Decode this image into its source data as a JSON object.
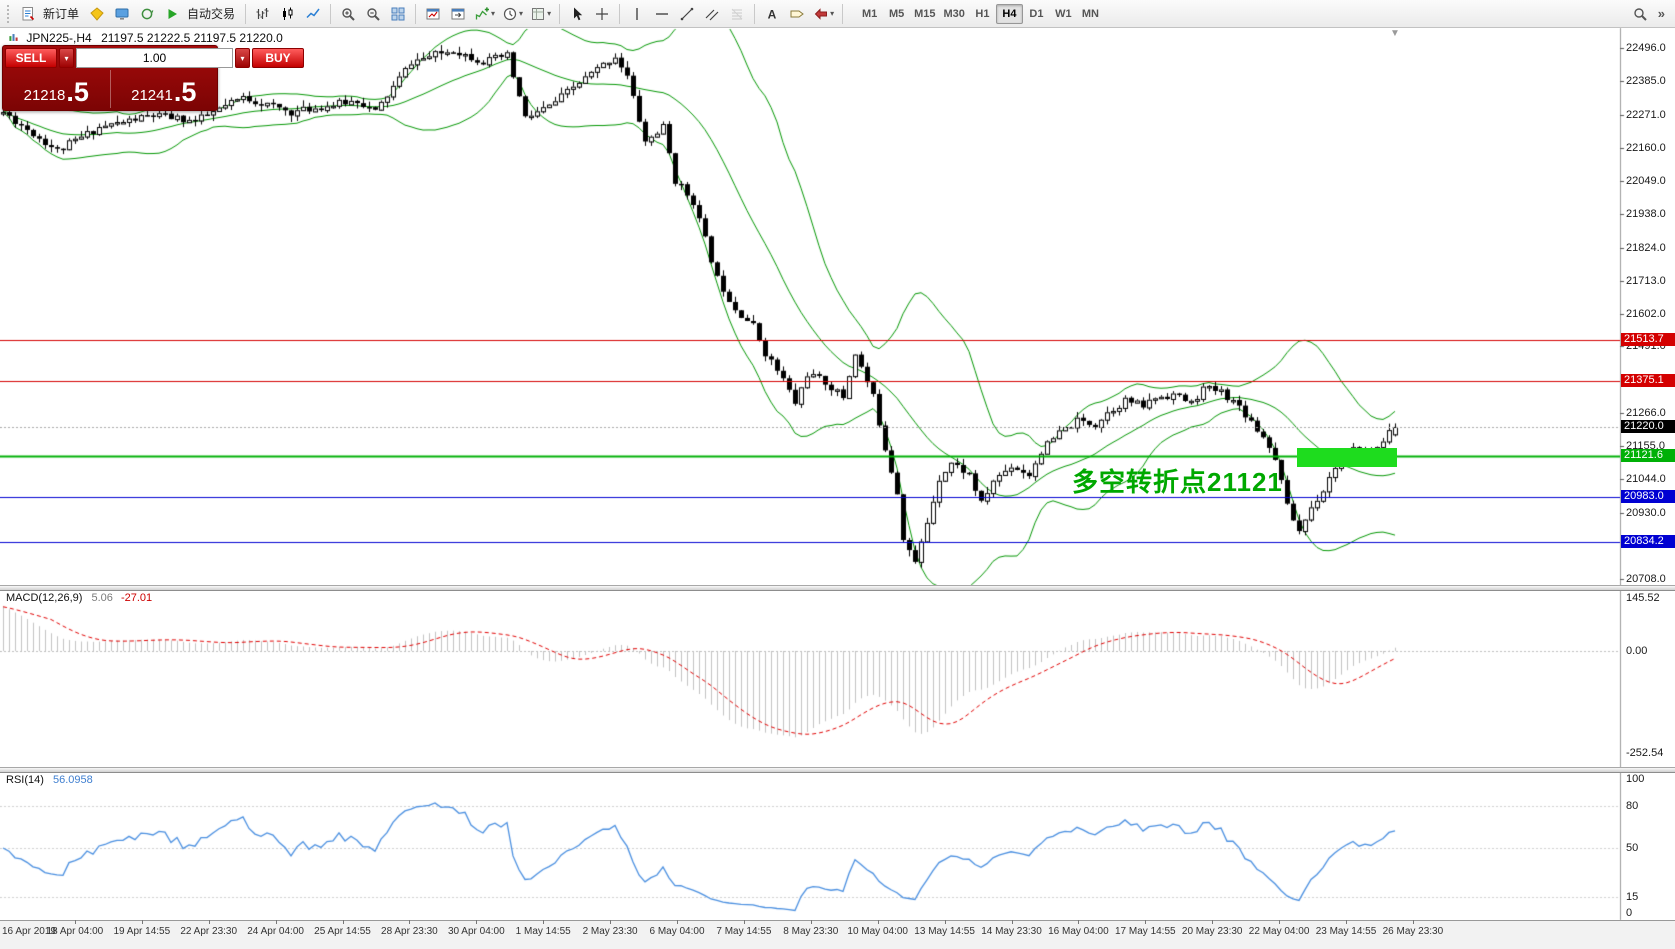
{
  "toolbar": {
    "new_order_label": "新订单",
    "autotrading_label": "自动交易",
    "timeframes": [
      "M1",
      "M5",
      "M15",
      "M30",
      "H1",
      "H4",
      "D1",
      "W1",
      "MN"
    ],
    "active_timeframe": "H4"
  },
  "icons": {
    "dropdown_glyph": "▾",
    "overflow_glyph": "»",
    "shift_marker_glyph": "▼",
    "letter_a_glyph": "A",
    "new_order": "document",
    "metaeditor": "yellow-diamond",
    "market_watch": "monitor",
    "refresh": "circular-arrow",
    "autotrading": "green-play",
    "bar_chart": "ohlc-bars",
    "candlestick_chart": "candles",
    "line_chart": "polyline",
    "zoom_in": "magnifier-plus",
    "zoom_out": "magnifier-minus",
    "tile_windows": "grid-2x2",
    "auto_scroll": "window-chart",
    "chart_shift": "window-shift",
    "indicators": "chart-plus",
    "periods": "clock",
    "templates": "grid-template",
    "cursor": "pointer-arrow",
    "crosshair": "cross",
    "vertical_line": "vertical-bar",
    "horizontal_line": "horizontal-bar",
    "trendline": "diagonal",
    "channel": "parallel-diagonals",
    "fibonacci": "fib-levels",
    "text": "letter-A",
    "text_label": "tag",
    "arrow_tools": "arrow-shape",
    "search": "magnifier"
  },
  "symbol_header": {
    "symbol": "JPN225-,H4",
    "ohlc": "21197.5 21222.5 21197.5 21220.0"
  },
  "one_click": {
    "sell_label": "SELL",
    "buy_label": "BUY",
    "lot": "1.00",
    "sell_price": "21218",
    "sell_price_big": ".5",
    "buy_price": "21241",
    "buy_price_big": ".5"
  },
  "price_axis": {
    "ticks": [
      "22496.0",
      "22385.0",
      "22271.0",
      "22160.0",
      "22049.0",
      "21938.0",
      "21824.0",
      "21713.0",
      "21602.0",
      "21491.0",
      "21266.0",
      "21155.0",
      "21044.0",
      "20930.0",
      "20708.0"
    ]
  },
  "hlines": [
    {
      "name": "resistance-line-1",
      "price": 21513.7,
      "label": "21513.7",
      "color": "#d40000",
      "style": "solid",
      "width": 1
    },
    {
      "name": "resistance-line-2",
      "price": 21375.1,
      "label": "21375.1",
      "color": "#d40000",
      "style": "solid",
      "width": 1
    },
    {
      "name": "bid-price-line",
      "price": 21220.0,
      "label": "21220.0",
      "color": "#000000",
      "line_color": "#a8a8a8",
      "style": "dot",
      "width": 1
    },
    {
      "name": "pivot-line",
      "price": 21121.6,
      "label": "21121.6",
      "color": "#00b007",
      "style": "solid",
      "width": 2
    },
    {
      "name": "support-line-1",
      "price": 20983.0,
      "label": "20983.0",
      "color": "#0000d2",
      "style": "solid",
      "width": 1
    },
    {
      "name": "support-line-2",
      "price": 20834.2,
      "label": "20834.2",
      "color": "#0000d2",
      "style": "solid",
      "width": 1
    }
  ],
  "annotation": {
    "text": "多空转折点21121",
    "color": "#00a800"
  },
  "highlight_box": {
    "color": "#1edc1e"
  },
  "panes": {
    "macd": {
      "label": "MACD(12,26,9)",
      "value_main": "5.06",
      "value_signal": "-27.01",
      "axis": [
        "145.52",
        "0.00",
        "-252.54"
      ]
    },
    "rsi": {
      "label": "RSI(14)",
      "value": "56.0958",
      "axis": [
        "100",
        "80",
        "50",
        "15",
        "0"
      ],
      "levels": [
        80,
        50,
        15
      ]
    }
  },
  "time_axis": {
    "labels": [
      "16 Apr 2019",
      "18 Apr 04:00",
      "19 Apr 14:55",
      "22 Apr 23:30",
      "24 Apr 04:00",
      "25 Apr 14:55",
      "28 Apr 23:30",
      "30 Apr 04:00",
      "1 May 14:55",
      "2 May 23:30",
      "6 May 04:00",
      "7 May 14:55",
      "8 May 23:30",
      "10 May 04:00",
      "13 May 14:55",
      "14 May 23:30",
      "16 May 04:00",
      "17 May 14:55",
      "20 May 23:30",
      "22 May 04:00",
      "23 May 14:55",
      "26 May 23:30"
    ]
  },
  "colors": {
    "bollinger": "#009600",
    "candle_up": "#ffffff",
    "candle_down": "#000000",
    "wick": "#000000",
    "macd_hist": "#c2c2c2",
    "macd_signal": "#e00000",
    "macd_zero": "#bdbdbd",
    "rsi_line": "#4a8fe0",
    "rsi_level": "#cfcfcf",
    "axis_line": "#9a9a9a"
  },
  "chart_data": {
    "type": "candlestick",
    "symbol": "JPN225-",
    "timeframe": "H4",
    "current_ohlc": {
      "open": 21197.5,
      "high": 21222.5,
      "low": 21197.5,
      "close": 21220.0
    },
    "visible_price_range": [
      20708,
      22563
    ],
    "candle_count": 233,
    "price_path": [
      [
        0,
        22280
      ],
      [
        9,
        22150
      ],
      [
        16,
        22230
      ],
      [
        25,
        22270
      ],
      [
        32,
        22250
      ],
      [
        40,
        22330
      ],
      [
        48,
        22280
      ],
      [
        59,
        22320
      ],
      [
        62,
        22280
      ],
      [
        68,
        22450
      ],
      [
        75,
        22490
      ],
      [
        80,
        22450
      ],
      [
        84,
        22470
      ],
      [
        87,
        22260
      ],
      [
        91,
        22300
      ],
      [
        96,
        22380
      ],
      [
        102,
        22470
      ],
      [
        104,
        22400
      ],
      [
        107,
        22180
      ],
      [
        110,
        22230
      ],
      [
        112,
        22050
      ],
      [
        115,
        21980
      ],
      [
        117,
        21850
      ],
      [
        119,
        21720
      ],
      [
        122,
        21620
      ],
      [
        125,
        21560
      ],
      [
        127,
        21470
      ],
      [
        130,
        21380
      ],
      [
        132,
        21300
      ],
      [
        134,
        21400
      ],
      [
        137,
        21370
      ],
      [
        140,
        21320
      ],
      [
        142,
        21470
      ],
      [
        145,
        21320
      ],
      [
        147,
        21150
      ],
      [
        149,
        21000
      ],
      [
        150,
        20850
      ],
      [
        152,
        20760
      ],
      [
        154,
        20900
      ],
      [
        156,
        21050
      ],
      [
        158,
        21100
      ],
      [
        161,
        21060
      ],
      [
        163,
        20960
      ],
      [
        165,
        21040
      ],
      [
        168,
        21090
      ],
      [
        171,
        21060
      ],
      [
        173,
        21140
      ],
      [
        176,
        21200
      ],
      [
        179,
        21240
      ],
      [
        182,
        21230
      ],
      [
        184,
        21270
      ],
      [
        187,
        21310
      ],
      [
        190,
        21290
      ],
      [
        192,
        21320
      ],
      [
        195,
        21330
      ],
      [
        198,
        21300
      ],
      [
        200,
        21350
      ],
      [
        203,
        21340
      ],
      [
        206,
        21290
      ],
      [
        208,
        21240
      ],
      [
        211,
        21160
      ],
      [
        213,
        21050
      ],
      [
        214,
        20950
      ],
      [
        216,
        20870
      ],
      [
        218,
        20950
      ],
      [
        220,
        21010
      ],
      [
        222,
        21090
      ],
      [
        225,
        21140
      ],
      [
        228,
        21130
      ],
      [
        230,
        21180
      ],
      [
        232,
        21220
      ]
    ],
    "indicators": [
      {
        "name": "Bollinger Bands",
        "period": 20,
        "deviation": 2
      },
      {
        "name": "MACD",
        "fast": 12,
        "slow": 26,
        "signal": 9,
        "values": [
          5.06,
          -27.01
        ],
        "range": [
          -252.54,
          145.52
        ]
      },
      {
        "name": "RSI",
        "period": 14,
        "value": 56.0958
      }
    ]
  }
}
